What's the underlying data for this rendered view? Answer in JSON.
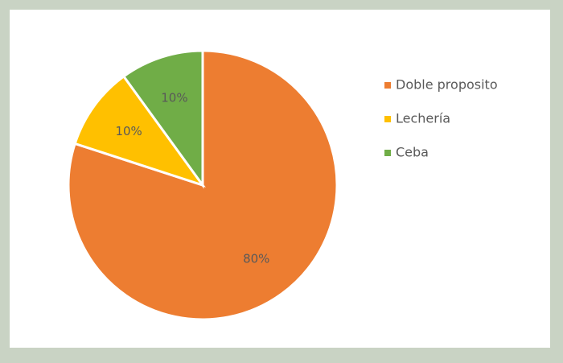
{
  "chart_data": {
    "type": "pie",
    "categories": [
      "Doble proposito",
      "Lechería",
      "Ceba"
    ],
    "values": [
      80,
      10,
      10
    ],
    "value_labels": [
      "80%",
      "10%",
      "10%"
    ],
    "colors": [
      "#ed7d31",
      "#ffc000",
      "#70ad47"
    ],
    "legend": "right"
  }
}
